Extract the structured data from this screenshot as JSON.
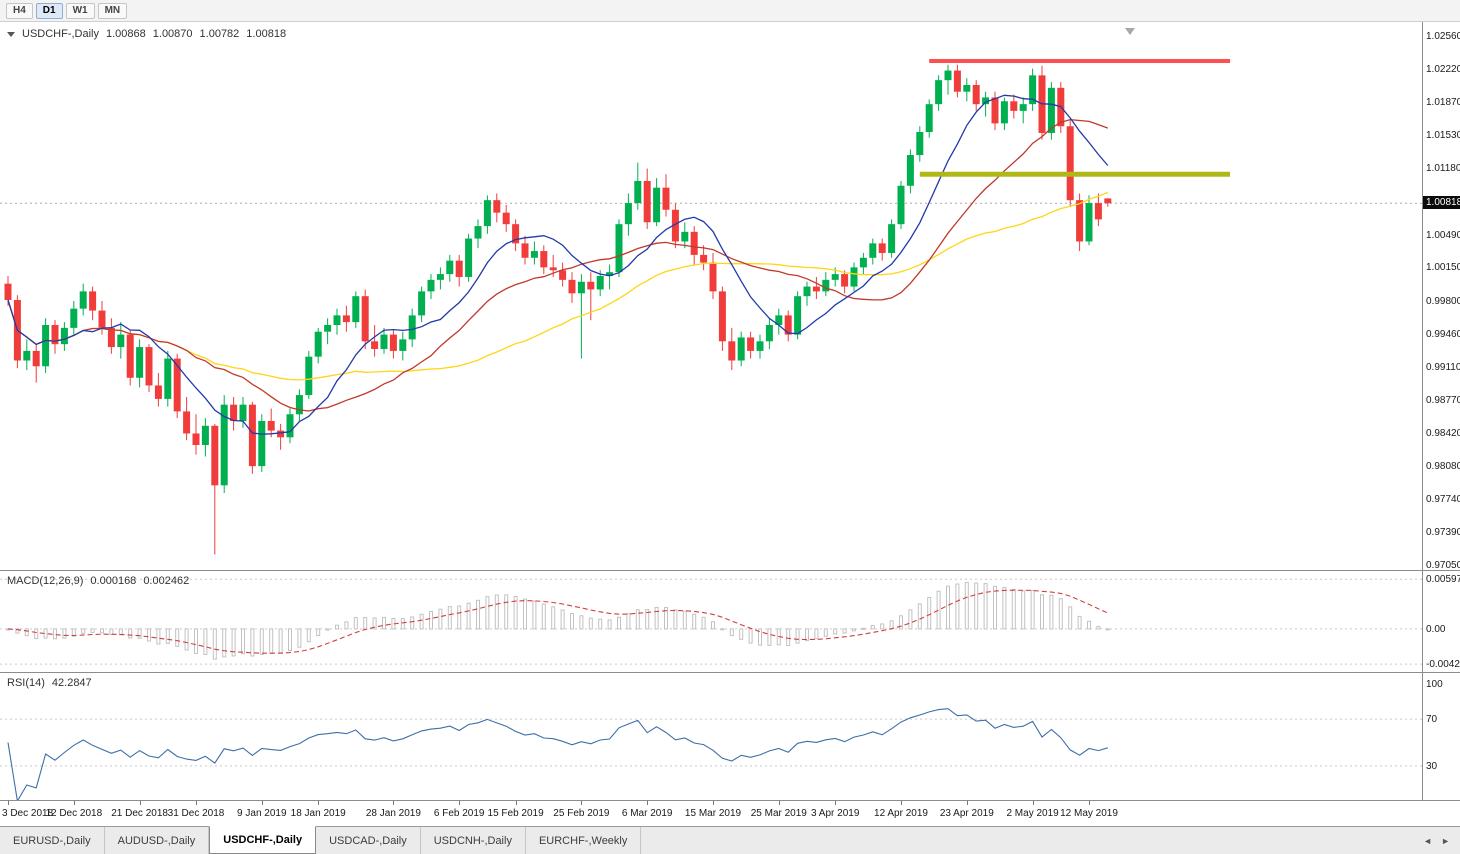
{
  "toolbar": {
    "timeframes": [
      {
        "label": "H4",
        "active": false
      },
      {
        "label": "D1",
        "active": true
      },
      {
        "label": "W1",
        "active": false
      },
      {
        "label": "MN",
        "active": false
      }
    ]
  },
  "chart": {
    "symbol_label": "USDCHF-,Daily",
    "ohlc": {
      "open": "1.00868",
      "high": "1.00870",
      "low": "1.00782",
      "close": "1.00818"
    },
    "current_price": "1.00818",
    "price_axis": [
      "1.02560",
      "1.02220",
      "1.01870",
      "1.01530",
      "1.01180",
      "1.00490",
      "1.00150",
      "0.99800",
      "0.99460",
      "0.99110",
      "0.98770",
      "0.98420",
      "0.98080",
      "0.97740",
      "0.97390",
      "0.97050"
    ],
    "lines": {
      "resistance": {
        "price": 1.023,
        "from_index": 98,
        "to_index": 130,
        "color": "#fd4f4f",
        "width": 4
      },
      "support": {
        "price": 1.0112,
        "from_index": 97,
        "to_index": 130,
        "color": "#b0b818",
        "width": 5
      }
    },
    "colors": {
      "bull": "#00b050",
      "bear": "#f13c3c",
      "ma_fast": "#2339a8",
      "ma_mid": "#c0392b",
      "ma_slow": "#ffd515",
      "current_price_line": "#aaaaaa"
    },
    "ma_periods": {
      "fast": 9,
      "mid": 20,
      "slow": 38
    }
  },
  "chart_data": {
    "type": "candlestick",
    "symbol": "USDCHF",
    "timeframe": "Daily",
    "price_range": {
      "max": 1.0256,
      "min": 0.9705
    },
    "ohlc": [
      [
        0.9998,
        1.0006,
        0.9975,
        0.9981
      ],
      [
        0.9981,
        0.9986,
        0.991,
        0.9918
      ],
      [
        0.9918,
        0.994,
        0.9908,
        0.9928
      ],
      [
        0.9928,
        0.9935,
        0.9895,
        0.9912
      ],
      [
        0.9912,
        0.9962,
        0.9905,
        0.9955
      ],
      [
        0.9955,
        0.996,
        0.9925,
        0.9935
      ],
      [
        0.9935,
        0.9958,
        0.9928,
        0.9952
      ],
      [
        0.9952,
        0.998,
        0.9945,
        0.9972
      ],
      [
        0.9972,
        0.9998,
        0.9965,
        0.999
      ],
      [
        0.999,
        0.9995,
        0.996,
        0.997
      ],
      [
        0.997,
        0.998,
        0.9945,
        0.9952
      ],
      [
        0.9952,
        0.9962,
        0.9925,
        0.9932
      ],
      [
        0.9932,
        0.9958,
        0.992,
        0.9945
      ],
      [
        0.9945,
        0.995,
        0.9892,
        0.99
      ],
      [
        0.99,
        0.994,
        0.989,
        0.9932
      ],
      [
        0.9932,
        0.9935,
        0.9885,
        0.9892
      ],
      [
        0.9892,
        0.9905,
        0.987,
        0.9878
      ],
      [
        0.9878,
        0.9928,
        0.987,
        0.992
      ],
      [
        0.992,
        0.9925,
        0.9858,
        0.9865
      ],
      [
        0.9865,
        0.988,
        0.9835,
        0.9842
      ],
      [
        0.9842,
        0.9862,
        0.982,
        0.983
      ],
      [
        0.983,
        0.9858,
        0.9818,
        0.985
      ],
      [
        0.985,
        0.9852,
        0.9716,
        0.9788
      ],
      [
        0.9788,
        0.9882,
        0.978,
        0.9872
      ],
      [
        0.9872,
        0.988,
        0.9845,
        0.9855
      ],
      [
        0.9855,
        0.988,
        0.9848,
        0.9872
      ],
      [
        0.9872,
        0.9875,
        0.98,
        0.9808
      ],
      [
        0.9808,
        0.9862,
        0.9802,
        0.9855
      ],
      [
        0.9855,
        0.9868,
        0.9838,
        0.9845
      ],
      [
        0.9845,
        0.9852,
        0.9825,
        0.9838
      ],
      [
        0.9838,
        0.9868,
        0.9832,
        0.9862
      ],
      [
        0.9862,
        0.9888,
        0.9855,
        0.9882
      ],
      [
        0.9882,
        0.9928,
        0.9878,
        0.9922
      ],
      [
        0.9922,
        0.9952,
        0.9915,
        0.9948
      ],
      [
        0.9948,
        0.9962,
        0.9935,
        0.9955
      ],
      [
        0.9955,
        0.9972,
        0.9945,
        0.9965
      ],
      [
        0.9965,
        0.9975,
        0.9948,
        0.9958
      ],
      [
        0.9958,
        0.999,
        0.9952,
        0.9985
      ],
      [
        0.9985,
        0.9992,
        0.993,
        0.9938
      ],
      [
        0.9938,
        0.9955,
        0.9922,
        0.993
      ],
      [
        0.993,
        0.9952,
        0.9925,
        0.9945
      ],
      [
        0.9945,
        0.995,
        0.992,
        0.9928
      ],
      [
        0.9928,
        0.9948,
        0.9918,
        0.994
      ],
      [
        0.994,
        0.9972,
        0.9932,
        0.9965
      ],
      [
        0.9965,
        0.9995,
        0.9958,
        0.999
      ],
      [
        0.999,
        1.0008,
        0.9982,
        1.0002
      ],
      [
        1.0002,
        1.0015,
        0.9992,
        1.0008
      ],
      [
        1.0008,
        1.0028,
        1.0,
        1.0022
      ],
      [
        1.0022,
        1.0028,
        0.9995,
        1.0005
      ],
      [
        1.0005,
        1.005,
        1.0,
        1.0045
      ],
      [
        1.0045,
        1.0065,
        1.0035,
        1.0058
      ],
      [
        1.0058,
        1.009,
        1.005,
        1.0085
      ],
      [
        1.0085,
        1.0092,
        1.0062,
        1.0072
      ],
      [
        1.0072,
        1.008,
        1.0052,
        1.006
      ],
      [
        1.006,
        1.0065,
        1.0032,
        1.004
      ],
      [
        1.004,
        1.0048,
        1.0018,
        1.0025
      ],
      [
        1.0025,
        1.0042,
        1.0018,
        1.0032
      ],
      [
        1.0032,
        1.0038,
        1.0008,
        1.0015
      ],
      [
        1.0015,
        1.0028,
        1.0005,
        1.0012
      ],
      [
        1.0012,
        1.002,
        0.9995,
        1.0002
      ],
      [
        1.0002,
        1.001,
        0.9978,
        0.9988
      ],
      [
        0.9988,
        1.0008,
        0.992,
        1.0
      ],
      [
        1.0,
        1.001,
        0.996,
        0.9992
      ],
      [
        0.9992,
        1.0012,
        0.9985,
        1.0006
      ],
      [
        1.0006,
        1.0018,
        0.9992,
        1.001
      ],
      [
        1.001,
        1.0065,
        1.0005,
        1.006
      ],
      [
        1.006,
        1.0092,
        1.0048,
        1.0082
      ],
      [
        1.0082,
        1.0124,
        1.0075,
        1.0105
      ],
      [
        1.0105,
        1.0118,
        1.0055,
        1.0062
      ],
      [
        1.0062,
        1.0108,
        1.0058,
        1.0098
      ],
      [
        1.0098,
        1.0112,
        1.0068,
        1.0075
      ],
      [
        1.0075,
        1.0082,
        1.0035,
        1.0042
      ],
      [
        1.0042,
        1.0062,
        1.0035,
        1.0052
      ],
      [
        1.0052,
        1.0058,
        1.0018,
        1.0028
      ],
      [
        1.0028,
        1.0038,
        1.0012,
        1.002
      ],
      [
        1.002,
        1.003,
        0.9982,
        0.999
      ],
      [
        0.999,
        0.9995,
        0.9928,
        0.9938
      ],
      [
        0.9938,
        0.9952,
        0.9908,
        0.9918
      ],
      [
        0.9918,
        0.9948,
        0.9912,
        0.9942
      ],
      [
        0.9942,
        0.9948,
        0.992,
        0.9928
      ],
      [
        0.9928,
        0.9945,
        0.992,
        0.9938
      ],
      [
        0.9938,
        0.9962,
        0.993,
        0.9955
      ],
      [
        0.9955,
        0.9972,
        0.9945,
        0.9965
      ],
      [
        0.9965,
        0.997,
        0.9938,
        0.9945
      ],
      [
        0.9945,
        0.999,
        0.994,
        0.9985
      ],
      [
        0.9985,
        1.0,
        0.9975,
        0.9995
      ],
      [
        0.9995,
        1.0005,
        0.9982,
        0.999
      ],
      [
        0.999,
        1.001,
        0.9985,
        1.0002
      ],
      [
        1.0002,
        1.0015,
        0.9995,
        1.0008
      ],
      [
        1.0008,
        1.0012,
        0.9988,
        0.9995
      ],
      [
        0.9995,
        1.002,
        0.999,
        1.0015
      ],
      [
        1.0015,
        1.003,
        1.0008,
        1.0025
      ],
      [
        1.0025,
        1.0045,
        1.0018,
        1.004
      ],
      [
        1.004,
        1.0045,
        1.0022,
        1.003
      ],
      [
        1.003,
        1.0065,
        1.0025,
        1.006
      ],
      [
        1.006,
        1.0105,
        1.0055,
        1.01
      ],
      [
        1.01,
        1.0138,
        1.0092,
        1.0132
      ],
      [
        1.0132,
        1.0162,
        1.0125,
        1.0156
      ],
      [
        1.0156,
        1.019,
        1.015,
        1.0185
      ],
      [
        1.0185,
        1.0215,
        1.0178,
        1.021
      ],
      [
        1.021,
        1.0226,
        1.0195,
        1.022
      ],
      [
        1.022,
        1.0226,
        1.0192,
        1.0198
      ],
      [
        1.0198,
        1.0212,
        1.0188,
        1.0205
      ],
      [
        1.0205,
        1.021,
        1.0178,
        1.0185
      ],
      [
        1.0185,
        1.0198,
        1.0172,
        1.0192
      ],
      [
        1.0192,
        1.0198,
        1.0158,
        1.0165
      ],
      [
        1.0165,
        1.0192,
        1.0158,
        1.0188
      ],
      [
        1.0188,
        1.0195,
        1.017,
        1.0178
      ],
      [
        1.0178,
        1.0192,
        1.0165,
        1.0185
      ],
      [
        1.0185,
        1.0222,
        1.0178,
        1.0215
      ],
      [
        1.0215,
        1.0225,
        1.0148,
        1.0155
      ],
      [
        1.0155,
        1.0208,
        1.0148,
        1.0202
      ],
      [
        1.0202,
        1.0208,
        1.0155,
        1.0162
      ],
      [
        1.0162,
        1.0168,
        1.0078,
        1.0085
      ],
      [
        1.0085,
        1.0092,
        1.0032,
        1.0042
      ],
      [
        1.0042,
        1.009,
        1.0038,
        1.0082
      ],
      [
        1.0082,
        1.0092,
        1.0058,
        1.0065
      ],
      [
        1.00868,
        1.0087,
        1.00782,
        1.00818
      ]
    ]
  },
  "macd": {
    "name_label": "MACD(12,26,9)",
    "value_main": "0.000168",
    "value_signal": "0.002462",
    "axis": [
      "0.00597",
      "0.00",
      "-0.00424"
    ],
    "fast": 12,
    "slow": 26,
    "signal": 9,
    "colors": {
      "histogram": "#c2c2c2",
      "signal": "#cf4040"
    }
  },
  "rsi": {
    "name_label": "RSI(14)",
    "value": "42.2847",
    "axis": [
      "100",
      "70",
      "30"
    ],
    "levels": [
      70,
      30
    ],
    "period": 14,
    "color": "#3e6fa8"
  },
  "date_axis": [
    {
      "label": "3 Dec 2018",
      "index": 0
    },
    {
      "label": "12 Dec 2018",
      "index": 7
    },
    {
      "label": "21 Dec 2018",
      "index": 14
    },
    {
      "label": "31 Dec 2018",
      "index": 20
    },
    {
      "label": "9 Jan 2019",
      "index": 27
    },
    {
      "label": "18 Jan 2019",
      "index": 33
    },
    {
      "label": "28 Jan 2019",
      "index": 41
    },
    {
      "label": "6 Feb 2019",
      "index": 48
    },
    {
      "label": "15 Feb 2019",
      "index": 54
    },
    {
      "label": "25 Feb 2019",
      "index": 61
    },
    {
      "label": "6 Mar 2019",
      "index": 68
    },
    {
      "label": "15 Mar 2019",
      "index": 75
    },
    {
      "label": "25 Mar 2019",
      "index": 82
    },
    {
      "label": "3 Apr 2019",
      "index": 88
    },
    {
      "label": "12 Apr 2019",
      "index": 95
    },
    {
      "label": "23 Apr 2019",
      "index": 102
    },
    {
      "label": "2 May 2019",
      "index": 109
    },
    {
      "label": "12 May 2019",
      "index": 115
    }
  ],
  "tabs": {
    "items": [
      {
        "label": "EURUSD-,Daily",
        "active": false
      },
      {
        "label": "AUDUSD-,Daily",
        "active": false
      },
      {
        "label": "USDCHF-,Daily",
        "active": true
      },
      {
        "label": "USDCAD-,Daily",
        "active": false
      },
      {
        "label": "USDCNH-,Daily",
        "active": false
      },
      {
        "label": "EURCHF-,Weekly",
        "active": false
      }
    ]
  }
}
